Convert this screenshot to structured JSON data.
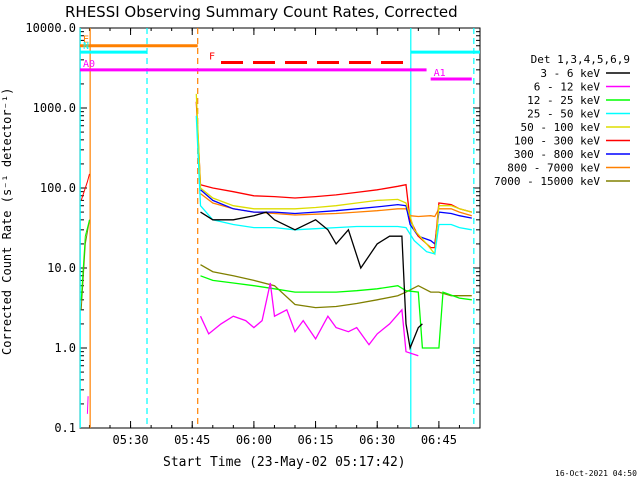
{
  "chart_data": {
    "type": "line",
    "title": "RHESSI Observing Summary Count Rates, Corrected",
    "xlabel": "Start Time (23-May-02 05:17:42)",
    "ylabel": "Corrected Count Rate (s⁻¹ detector⁻¹)",
    "footer": "16-Oct-2021 04:50",
    "y_scale": "log",
    "ylim": [
      0.1,
      10000
    ],
    "y_ticks": [
      {
        "value": 0.1,
        "label": "0.1"
      },
      {
        "value": 1,
        "label": "1.0"
      },
      {
        "value": 10,
        "label": "10.0"
      },
      {
        "value": 100,
        "label": "100.0"
      },
      {
        "value": 1000,
        "label": "1000.0"
      },
      {
        "value": 10000,
        "label": "10000.0"
      }
    ],
    "xlim": [
      "05:17:42",
      "06:55:00"
    ],
    "x_ticks": [
      "05:30",
      "05:45",
      "06:00",
      "06:15",
      "06:30",
      "06:45"
    ],
    "legend": {
      "title": "Det 1,3,4,5,6,9",
      "position": "right"
    },
    "series": [
      {
        "name": "3 - 6 keV",
        "color": "#000000",
        "points": [
          [
            "05:47:00",
            50
          ],
          [
            "05:50:00",
            40
          ],
          [
            "05:55:00",
            40
          ],
          [
            "06:00:00",
            45
          ],
          [
            "06:03:00",
            50
          ],
          [
            "06:05:00",
            40
          ],
          [
            "06:10:00",
            30
          ],
          [
            "06:15:00",
            40
          ],
          [
            "06:18:00",
            30
          ],
          [
            "06:20:00",
            20
          ],
          [
            "06:23:00",
            30
          ],
          [
            "06:26:00",
            10
          ],
          [
            "06:30:00",
            20
          ],
          [
            "06:33:00",
            25
          ],
          [
            "06:35:00",
            25
          ],
          [
            "06:36:00",
            25
          ],
          [
            "06:37:00",
            2
          ],
          [
            "06:38:00",
            1
          ],
          [
            "06:40:00",
            1.8
          ],
          [
            "06:41:00",
            2
          ]
        ]
      },
      {
        "name": "6 - 12 keV",
        "color": "#ff00ff",
        "points": [
          [
            "05:47:00",
            2.5
          ],
          [
            "05:49:00",
            1.5
          ],
          [
            "05:52:00",
            2.0
          ],
          [
            "05:55:00",
            2.5
          ],
          [
            "05:58:00",
            2.2
          ],
          [
            "06:00:00",
            1.8
          ],
          [
            "06:02:00",
            2.2
          ],
          [
            "06:04:00",
            6.5
          ],
          [
            "06:05:00",
            2.5
          ],
          [
            "06:08:00",
            3.0
          ],
          [
            "06:10:00",
            1.6
          ],
          [
            "06:12:00",
            2.2
          ],
          [
            "06:15:00",
            1.3
          ],
          [
            "06:18:00",
            2.5
          ],
          [
            "06:20:00",
            1.8
          ],
          [
            "06:23:00",
            1.6
          ],
          [
            "06:25:00",
            1.8
          ],
          [
            "06:28:00",
            1.1
          ],
          [
            "06:30:00",
            1.5
          ],
          [
            "06:33:00",
            2.0
          ],
          [
            "06:36:00",
            3.0
          ],
          [
            "06:37:00",
            0.9
          ],
          [
            "06:40:00",
            0.8
          ]
        ]
      },
      {
        "name": "12 - 25 keV",
        "color": "#00ff00",
        "points": [
          [
            "05:47:00",
            8
          ],
          [
            "05:50:00",
            7
          ],
          [
            "05:55:00",
            6.5
          ],
          [
            "06:00:00",
            6
          ],
          [
            "06:05:00",
            5.5
          ],
          [
            "06:10:00",
            5
          ],
          [
            "06:15:00",
            5
          ],
          [
            "06:20:00",
            5
          ],
          [
            "06:25:00",
            5.2
          ],
          [
            "06:30:00",
            5.5
          ],
          [
            "06:35:00",
            6
          ],
          [
            "06:37:00",
            5.2
          ],
          [
            "06:40:00",
            5
          ],
          [
            "06:41:00",
            1
          ],
          [
            "06:45:00",
            1
          ],
          [
            "06:46:00",
            5
          ],
          [
            "06:50:00",
            4.2
          ],
          [
            "06:53:00",
            4
          ]
        ]
      },
      {
        "name": "25 - 50 keV",
        "color": "#00ffff",
        "points": [
          [
            "05:46:00",
            800
          ],
          [
            "05:47:00",
            60
          ],
          [
            "05:50:00",
            40
          ],
          [
            "05:55:00",
            35
          ],
          [
            "06:00:00",
            32
          ],
          [
            "06:05:00",
            32
          ],
          [
            "06:10:00",
            30
          ],
          [
            "06:15:00",
            31
          ],
          [
            "06:20:00",
            32
          ],
          [
            "06:25:00",
            33
          ],
          [
            "06:30:00",
            33
          ],
          [
            "06:35:00",
            33
          ],
          [
            "06:37:00",
            32
          ],
          [
            "06:39:00",
            22
          ],
          [
            "06:42:00",
            16
          ],
          [
            "06:44:00",
            15
          ],
          [
            "06:45:00",
            35
          ],
          [
            "06:48:00",
            35
          ],
          [
            "06:50:00",
            32
          ],
          [
            "06:53:00",
            30
          ]
        ]
      },
      {
        "name": "50 - 100 keV",
        "color": "#dddd00",
        "points": [
          [
            "05:46:00",
            1500
          ],
          [
            "05:47:00",
            100
          ],
          [
            "05:50:00",
            75
          ],
          [
            "05:55:00",
            60
          ],
          [
            "06:00:00",
            55
          ],
          [
            "06:05:00",
            55
          ],
          [
            "06:10:00",
            55
          ],
          [
            "06:15:00",
            57
          ],
          [
            "06:20:00",
            60
          ],
          [
            "06:25:00",
            65
          ],
          [
            "06:30:00",
            70
          ],
          [
            "06:35:00",
            72
          ],
          [
            "06:37:00",
            65
          ],
          [
            "06:39:00",
            30
          ],
          [
            "06:42:00",
            20
          ],
          [
            "06:44:00",
            15
          ],
          [
            "06:45:00",
            60
          ],
          [
            "06:48:00",
            60
          ],
          [
            "06:50:00",
            55
          ],
          [
            "06:53:00",
            50
          ]
        ]
      },
      {
        "name": "100 - 300 keV",
        "color": "#ff0000",
        "points": [
          [
            "05:46:00",
            1200
          ],
          [
            "05:47:00",
            110
          ],
          [
            "05:50:00",
            100
          ],
          [
            "05:55:00",
            90
          ],
          [
            "06:00:00",
            80
          ],
          [
            "06:05:00",
            78
          ],
          [
            "06:10:00",
            75
          ],
          [
            "06:15:00",
            78
          ],
          [
            "06:20:00",
            82
          ],
          [
            "06:25:00",
            88
          ],
          [
            "06:30:00",
            95
          ],
          [
            "06:35:00",
            105
          ],
          [
            "06:37:00",
            110
          ],
          [
            "06:38:00",
            40
          ],
          [
            "06:40:00",
            25
          ],
          [
            "06:43:00",
            18
          ],
          [
            "06:44:00",
            18
          ],
          [
            "06:45:00",
            65
          ],
          [
            "06:48:00",
            62
          ],
          [
            "06:50:00",
            55
          ],
          [
            "06:53:00",
            50
          ]
        ]
      },
      {
        "name": "300 - 800 keV",
        "color": "#0000ff",
        "points": [
          [
            "05:47:00",
            95
          ],
          [
            "05:50:00",
            70
          ],
          [
            "05:55:00",
            55
          ],
          [
            "06:00:00",
            50
          ],
          [
            "06:05:00",
            50
          ],
          [
            "06:10:00",
            48
          ],
          [
            "06:15:00",
            50
          ],
          [
            "06:20:00",
            52
          ],
          [
            "06:25:00",
            55
          ],
          [
            "06:30:00",
            58
          ],
          [
            "06:35:00",
            62
          ],
          [
            "06:37:00",
            60
          ],
          [
            "06:38:00",
            35
          ],
          [
            "06:40:00",
            25
          ],
          [
            "06:43:00",
            22
          ],
          [
            "06:44:00",
            20
          ],
          [
            "06:45:00",
            50
          ],
          [
            "06:48:00",
            48
          ],
          [
            "06:50:00",
            45
          ],
          [
            "06:53:00",
            42
          ]
        ]
      },
      {
        "name": "800 - 7000 keV",
        "color": "#ff8000",
        "points": [
          [
            "05:47:00",
            85
          ],
          [
            "05:50:00",
            65
          ],
          [
            "05:55:00",
            55
          ],
          [
            "06:00:00",
            50
          ],
          [
            "06:05:00",
            48
          ],
          [
            "06:10:00",
            46
          ],
          [
            "06:15:00",
            47
          ],
          [
            "06:20:00",
            48
          ],
          [
            "06:25:00",
            50
          ],
          [
            "06:30:00",
            52
          ],
          [
            "06:35:00",
            55
          ],
          [
            "06:37:00",
            55
          ],
          [
            "06:38:00",
            45
          ],
          [
            "06:40:00",
            44
          ],
          [
            "06:43:00",
            45
          ],
          [
            "06:44:00",
            44
          ],
          [
            "06:45:00",
            55
          ],
          [
            "06:48:00",
            55
          ],
          [
            "06:50:00",
            50
          ],
          [
            "06:53:00",
            45
          ]
        ]
      },
      {
        "name": "7000 - 15000 keV",
        "color": "#808000",
        "points": [
          [
            "05:47:00",
            11
          ],
          [
            "05:50:00",
            9
          ],
          [
            "05:55:00",
            8
          ],
          [
            "06:00:00",
            7
          ],
          [
            "06:05:00",
            6
          ],
          [
            "06:10:00",
            3.5
          ],
          [
            "06:15:00",
            3.2
          ],
          [
            "06:20:00",
            3.3
          ],
          [
            "06:25:00",
            3.6
          ],
          [
            "06:30:00",
            4
          ],
          [
            "06:35:00",
            4.5
          ],
          [
            "06:37:00",
            5
          ],
          [
            "06:40:00",
            6
          ],
          [
            "06:43:00",
            5
          ],
          [
            "06:45:00",
            5
          ],
          [
            "06:48:00",
            4.5
          ],
          [
            "06:50:00",
            4.5
          ],
          [
            "06:53:00",
            4.5
          ]
        ]
      }
    ],
    "pre_gap_series": [
      {
        "color": "#ff0000",
        "points": [
          [
            "05:18:00",
            70
          ],
          [
            "05:19:30",
            120
          ],
          [
            "05:20:00",
            150
          ]
        ]
      },
      {
        "color": "#808000",
        "points": [
          [
            "05:18:00",
            3
          ],
          [
            "05:19:00",
            20
          ],
          [
            "05:20:00",
            40
          ]
        ]
      },
      {
        "color": "#00ff00",
        "points": [
          [
            "05:18:00",
            4
          ],
          [
            "05:19:00",
            25
          ],
          [
            "05:20:00",
            40
          ]
        ]
      },
      {
        "color": "#ff00ff",
        "points": [
          [
            "05:19:30",
            0.15
          ],
          [
            "05:19:40",
            0.25
          ]
        ]
      }
    ],
    "flag_bars": [
      {
        "label": "E",
        "color": "#ff8000",
        "level": 6000,
        "segments": [
          [
            "05:17:42",
            "05:46:20"
          ]
        ]
      },
      {
        "label": "N",
        "color": "#00ffff",
        "level": 5000,
        "segments": [
          [
            "05:17:42",
            "05:34:00"
          ],
          [
            "06:38:10",
            "06:55:00"
          ]
        ]
      },
      {
        "label": "F",
        "color": "#ff0000",
        "level": 3700,
        "dashed": true,
        "segments": [
          [
            "05:52:00",
            "06:37:00"
          ]
        ]
      },
      {
        "label": "A0",
        "color": "#ff00ff",
        "level": 3000,
        "segments": [
          [
            "05:17:42",
            "06:42:00"
          ]
        ]
      },
      {
        "label": "A1",
        "color": "#ff00ff",
        "level": 2300,
        "segments": [
          [
            "06:43:00",
            "06:53:00"
          ]
        ]
      }
    ],
    "vertical_markers": [
      {
        "time": "05:17:45",
        "color": "#00ffff",
        "dashed": false
      },
      {
        "time": "05:20:10",
        "color": "#ff8000",
        "dashed": false
      },
      {
        "time": "05:34:00",
        "color": "#00ffff",
        "dashed": true
      },
      {
        "time": "05:46:20",
        "color": "#ff8000",
        "dashed": true
      },
      {
        "time": "06:38:10",
        "color": "#00ffff",
        "dashed": false
      },
      {
        "time": "06:53:30",
        "color": "#00ffff",
        "dashed": true
      }
    ],
    "grid": false
  }
}
